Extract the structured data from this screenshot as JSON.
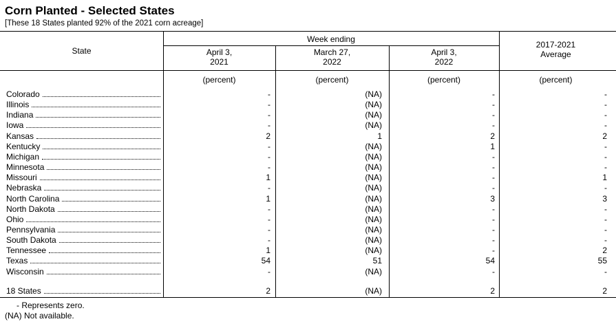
{
  "header": {
    "title": "Corn Planted - Selected States",
    "subtitle": "[These 18 States planted 92% of the 2021 corn acreage]"
  },
  "table": {
    "state_header": "State",
    "group_header": "Week ending",
    "columns": [
      [
        "April 3,",
        "2021"
      ],
      [
        "March 27,",
        "2022"
      ],
      [
        "April 3,",
        "2022"
      ],
      [
        "2017-2021",
        "Average"
      ]
    ],
    "units": [
      "(percent)",
      "(percent)",
      "(percent)",
      "(percent)"
    ],
    "rows": [
      [
        "Colorado",
        "-",
        "(NA)",
        "-",
        "-"
      ],
      [
        "Illinois",
        "-",
        "(NA)",
        "-",
        "-"
      ],
      [
        "Indiana",
        "-",
        "(NA)",
        "-",
        "-"
      ],
      [
        "Iowa",
        "-",
        "(NA)",
        "-",
        "-"
      ],
      [
        "Kansas",
        2,
        1,
        2,
        2
      ],
      [
        "Kentucky",
        "-",
        "(NA)",
        1,
        "-"
      ],
      [
        "Michigan",
        "-",
        "(NA)",
        "-",
        "-"
      ],
      [
        "Minnesota",
        "-",
        "(NA)",
        "-",
        "-"
      ],
      [
        "Missouri",
        1,
        "(NA)",
        "-",
        1
      ],
      [
        "Nebraska",
        "-",
        "(NA)",
        "-",
        "-"
      ],
      [
        "North Carolina",
        1,
        "(NA)",
        3,
        3
      ],
      [
        "North Dakota",
        "-",
        "(NA)",
        "-",
        "-"
      ],
      [
        "Ohio",
        "-",
        "(NA)",
        "-",
        "-"
      ],
      [
        "Pennsylvania",
        "-",
        "(NA)",
        "-",
        "-"
      ],
      [
        "South Dakota",
        "-",
        "(NA)",
        "-",
        "-"
      ],
      [
        "Tennessee",
        1,
        "(NA)",
        "-",
        2
      ],
      [
        "Texas",
        54,
        51,
        54,
        55
      ],
      [
        "Wisconsin",
        "-",
        "(NA)",
        "-",
        "-"
      ]
    ],
    "total": [
      "18 States",
      2,
      "(NA)",
      2,
      2
    ]
  },
  "footnotes": [
    "- Represents zero.",
    "(NA) Not available."
  ]
}
